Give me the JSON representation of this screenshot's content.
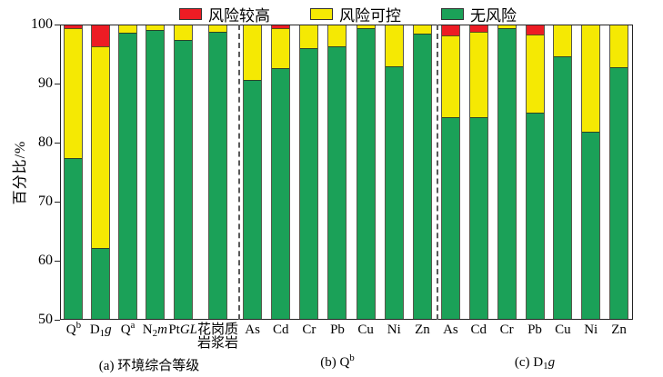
{
  "chart_data": {
    "type": "bar",
    "stacked": true,
    "title": "",
    "xlabel": "",
    "ylabel": "百分比/%",
    "ylim": [
      50,
      100
    ],
    "yticks": [
      100,
      90,
      80,
      70,
      60,
      50
    ],
    "grid": false,
    "legend_position": "top-center",
    "legend": [
      {
        "key": "risk-high",
        "label": "风险较高",
        "color": "#ed1c24"
      },
      {
        "key": "risk-control",
        "label": "风险可控",
        "color": "#f5e903"
      },
      {
        "key": "no-risk",
        "label": "无风险",
        "color": "#1ba158"
      }
    ],
    "unit": "percent",
    "groups": [
      {
        "caption": "(a) 环境综合等级",
        "bars": [
          {
            "label": "Q^b",
            "risk_high": 0.4,
            "risk_control": 22.1,
            "no_risk": 77.5
          },
          {
            "label": "D_1*g*",
            "risk_high": 3.5,
            "risk_control": 34.2,
            "no_risk": 62.3
          },
          {
            "label": "Q^a",
            "risk_high": 0,
            "risk_control": 1.3,
            "no_risk": 98.7
          },
          {
            "label": "N_2*m*",
            "risk_high": 0,
            "risk_control": 0.7,
            "no_risk": 99.3
          },
          {
            "label": "Pt*GL*",
            "risk_high": 0,
            "risk_control": 2.5,
            "no_risk": 97.5
          },
          {
            "label": "花岗质|岩浆岩",
            "risk_high": 0,
            "risk_control": 1.0,
            "no_risk": 99.0
          }
        ]
      },
      {
        "caption": "(b) Q^b",
        "bars": [
          {
            "label": "As",
            "risk_high": 0,
            "risk_control": 9.3,
            "no_risk": 90.7
          },
          {
            "label": "Cd",
            "risk_high": 0.4,
            "risk_control": 6.8,
            "no_risk": 92.8
          },
          {
            "label": "Cr",
            "risk_high": 0,
            "risk_control": 3.9,
            "no_risk": 96.1
          },
          {
            "label": "Pb",
            "risk_high": 0,
            "risk_control": 3.5,
            "no_risk": 96.5
          },
          {
            "label": "Cu",
            "risk_high": 0,
            "risk_control": 0.5,
            "no_risk": 99.5
          },
          {
            "label": "Ni",
            "risk_high": 0,
            "risk_control": 6.9,
            "no_risk": 93.1
          },
          {
            "label": "Zn",
            "risk_high": 0,
            "risk_control": 1.4,
            "no_risk": 98.6
          }
        ]
      },
      {
        "caption": "(c) D_1*g*",
        "bars": [
          {
            "label": "As",
            "risk_high": 1.7,
            "risk_control": 13.9,
            "no_risk": 84.4
          },
          {
            "label": "Cd",
            "risk_high": 1.1,
            "risk_control": 14.4,
            "no_risk": 84.5
          },
          {
            "label": "Cr",
            "risk_high": 0,
            "risk_control": 0.5,
            "no_risk": 99.5
          },
          {
            "label": "Pb",
            "risk_high": 1.5,
            "risk_control": 13.2,
            "no_risk": 85.3
          },
          {
            "label": "Cu",
            "risk_high": 0,
            "risk_control": 5.3,
            "no_risk": 94.7
          },
          {
            "label": "Ni",
            "risk_high": 0,
            "risk_control": 18.0,
            "no_risk": 82.0
          },
          {
            "label": "Zn",
            "risk_high": 0,
            "risk_control": 7.0,
            "no_risk": 93.0
          }
        ]
      }
    ]
  }
}
